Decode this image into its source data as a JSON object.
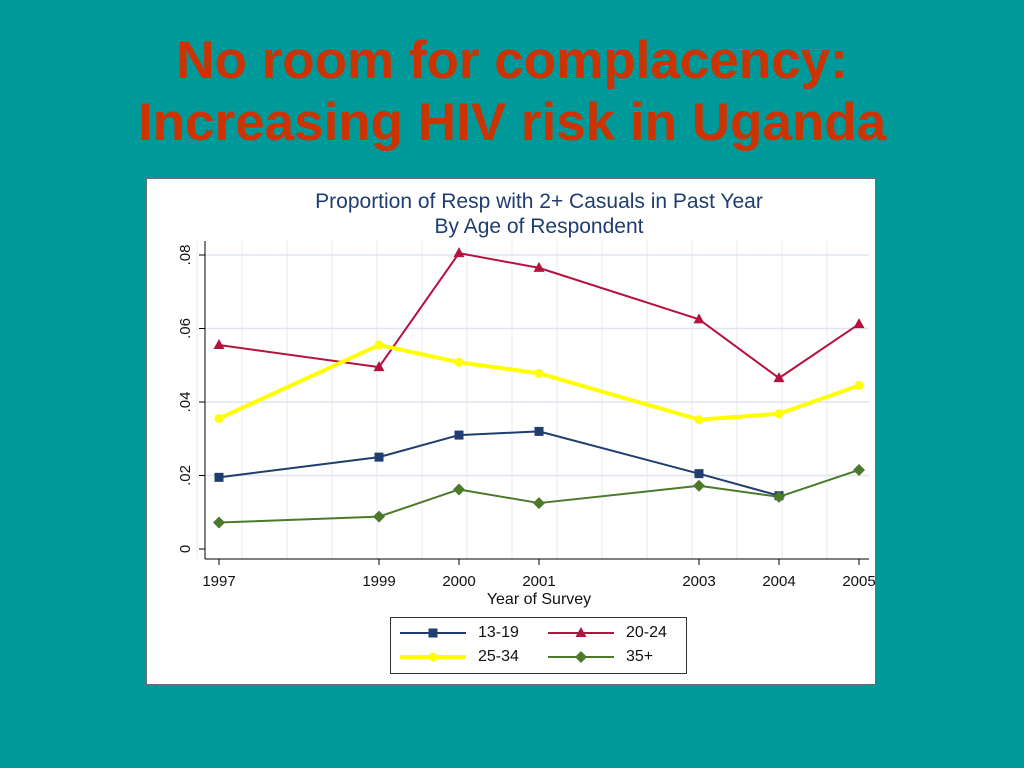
{
  "slide": {
    "title_line1": "No room for complacency:",
    "title_line2": "Increasing HIV risk in Uganda"
  },
  "chart_data": {
    "type": "line",
    "title": "Proportion of Resp with 2+ Casuals in Past Year",
    "subtitle": "By Age of Respondent",
    "xlabel": "Year of Survey",
    "ylabel": "",
    "x": [
      1997,
      1999,
      2000,
      2001,
      2003,
      2004,
      2005
    ],
    "xlim": [
      1997,
      2005
    ],
    "ylim": [
      0,
      0.08
    ],
    "yticks": [
      0,
      0.02,
      0.04,
      0.06,
      0.08
    ],
    "ytick_labels": [
      "0",
      ".02",
      ".04",
      ".06",
      ".08"
    ],
    "xtick_labels": [
      "1997",
      "1999",
      "2000",
      "2001",
      "2003",
      "2004",
      "2005"
    ],
    "grid": true,
    "legend_position": "bottom-center",
    "series": [
      {
        "name": "13-19",
        "color": "#1f3d6e",
        "marker": "square",
        "width": 2,
        "values": [
          0.0195,
          0.025,
          0.031,
          0.032,
          0.0205,
          0.0145,
          null
        ]
      },
      {
        "name": "20-24",
        "color": "#b5123f",
        "marker": "triangle",
        "width": 2,
        "values": [
          0.0555,
          0.0495,
          0.0805,
          0.0765,
          0.0625,
          0.0465,
          0.0612
        ]
      },
      {
        "name": "25-34",
        "color": "#ffff00",
        "marker": "circle",
        "width": 4,
        "values": [
          0.0355,
          0.0555,
          0.0508,
          0.0478,
          0.0352,
          0.0368,
          0.0445
        ]
      },
      {
        "name": "35+",
        "color": "#4a7a2a",
        "marker": "diamond",
        "width": 2,
        "values": [
          0.0072,
          0.0088,
          0.0162,
          0.0125,
          0.0172,
          0.0142,
          0.0215
        ]
      }
    ]
  }
}
